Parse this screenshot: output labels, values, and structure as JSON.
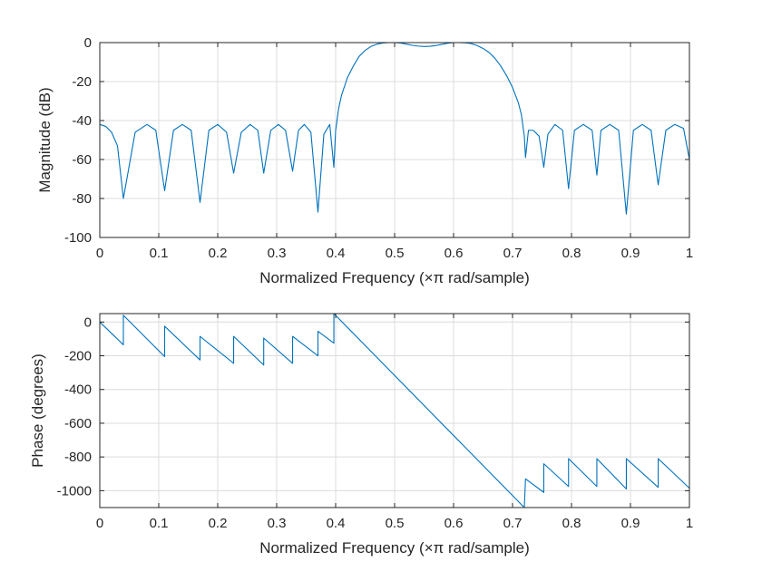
{
  "chart_data": [
    {
      "type": "line",
      "xlabel": "Normalized Frequency  (×π rad/sample)",
      "ylabel": "Magnitude (dB)",
      "xlim": [
        0,
        1
      ],
      "ylim": [
        -100,
        0
      ],
      "xticks": [
        0,
        0.1,
        0.2,
        0.3,
        0.4,
        0.5,
        0.6,
        0.7,
        0.8,
        0.9,
        1
      ],
      "xtick_labels": [
        "0",
        "0.1",
        "0.2",
        "0.3",
        "0.4",
        "0.5",
        "0.6",
        "0.7",
        "0.8",
        "0.9",
        "1"
      ],
      "yticks": [
        0,
        -20,
        -40,
        -60,
        -80,
        -100
      ],
      "ytick_labels": [
        "0",
        "-20",
        "-40",
        "-60",
        "-80",
        "-100"
      ],
      "grid": true,
      "line_color": "#0072BD",
      "series": [
        {
          "x": [
            0,
            0.01,
            0.02,
            0.03,
            0.04,
            0.06,
            0.08,
            0.095,
            0.11,
            0.125,
            0.14,
            0.155,
            0.17,
            0.185,
            0.2,
            0.215,
            0.227,
            0.24,
            0.255,
            0.268,
            0.278,
            0.29,
            0.303,
            0.315,
            0.327,
            0.337,
            0.347,
            0.358,
            0.37,
            0.38,
            0.39,
            0.397,
            0.4,
            0.405,
            0.41,
            0.42,
            0.43,
            0.44,
            0.45,
            0.46,
            0.47,
            0.48,
            0.49,
            0.5,
            0.51,
            0.52,
            0.53,
            0.54,
            0.55,
            0.56,
            0.57,
            0.58,
            0.59,
            0.6,
            0.61,
            0.62,
            0.63,
            0.64,
            0.65,
            0.66,
            0.67,
            0.68,
            0.69,
            0.7,
            0.71,
            0.715,
            0.72,
            0.722,
            0.727,
            0.735,
            0.745,
            0.753,
            0.76,
            0.772,
            0.785,
            0.795,
            0.805,
            0.82,
            0.835,
            0.843,
            0.85,
            0.865,
            0.88,
            0.893,
            0.905,
            0.92,
            0.935,
            0.947,
            0.96,
            0.975,
            0.99,
            1
          ],
          "y": [
            -42,
            -43,
            -46,
            -53,
            -80,
            -46,
            -42,
            -45,
            -76,
            -45,
            -42,
            -45,
            -82,
            -45,
            -42,
            -46,
            -67,
            -46,
            -42,
            -45,
            -67,
            -45,
            -42,
            -45,
            -66,
            -45,
            -42,
            -46,
            -87,
            -47,
            -42,
            -64,
            -45,
            -34,
            -27,
            -18,
            -12,
            -7,
            -4,
            -2,
            -0.8,
            -0.2,
            0,
            0,
            -0.2,
            -0.8,
            -1.4,
            -1.8,
            -2,
            -1.9,
            -1.5,
            -0.9,
            -0.3,
            0,
            0,
            -0.1,
            -0.5,
            -1.5,
            -3,
            -5,
            -8,
            -12,
            -17,
            -23,
            -31,
            -37,
            -48,
            -59,
            -45,
            -45,
            -48,
            -64,
            -47,
            -42,
            -45,
            -75,
            -45,
            -42,
            -45,
            -68,
            -45,
            -42,
            -45,
            -88,
            -45,
            -42,
            -45,
            -73,
            -45,
            -42,
            -44,
            -60
          ]
        }
      ]
    },
    {
      "type": "line",
      "xlabel": "Normalized Frequency  (×π rad/sample)",
      "ylabel": "Phase (degrees)",
      "xlim": [
        0,
        1
      ],
      "ylim": [
        -1100,
        50
      ],
      "xticks": [
        0,
        0.1,
        0.2,
        0.3,
        0.4,
        0.5,
        0.6,
        0.7,
        0.8,
        0.9,
        1
      ],
      "xtick_labels": [
        "0",
        "0.1",
        "0.2",
        "0.3",
        "0.4",
        "0.5",
        "0.6",
        "0.7",
        "0.8",
        "0.9",
        "1"
      ],
      "yticks": [
        0,
        -200,
        -400,
        -600,
        -800,
        -1000
      ],
      "ytick_labels": [
        "0",
        "-200",
        "-400",
        "-600",
        "-800",
        "-1000"
      ],
      "grid": true,
      "line_color": "#0072BD",
      "series": [
        {
          "x": [
            0,
            0.04,
            0.04,
            0.11,
            0.11,
            0.17,
            0.17,
            0.227,
            0.227,
            0.278,
            0.278,
            0.327,
            0.327,
            0.37,
            0.37,
            0.397,
            0.397,
            0.72,
            0.72,
            0.722,
            0.722,
            0.753,
            0.753,
            0.795,
            0.795,
            0.843,
            0.843,
            0.893,
            0.893,
            0.947,
            0.947,
            1
          ],
          "y": [
            0,
            -135,
            40,
            -205,
            -25,
            -225,
            -85,
            -245,
            -85,
            -255,
            -95,
            -245,
            -85,
            -200,
            -55,
            -125,
            50,
            -1100,
            -1100,
            -930,
            -930,
            -1010,
            -840,
            -975,
            -810,
            -975,
            -810,
            -990,
            -810,
            -980,
            -810,
            -985
          ]
        }
      ]
    }
  ]
}
